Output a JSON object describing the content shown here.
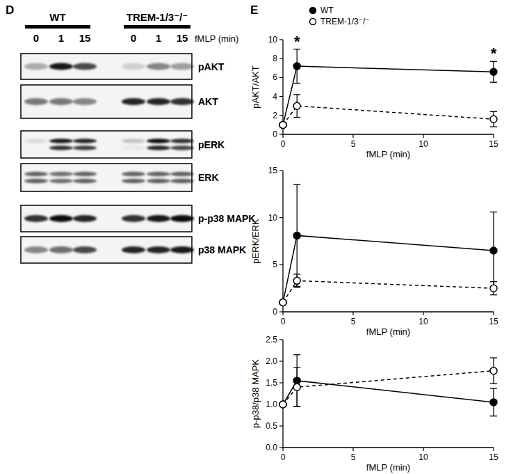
{
  "blot": {
    "panel_label": "D",
    "groups": [
      {
        "label": "WT",
        "lanes": [
          "0",
          "1",
          "15"
        ]
      },
      {
        "label": "TREM-1/3⁻/⁻",
        "lanes": [
          "0",
          "1",
          "15"
        ]
      }
    ],
    "lane_axis_label": "fMLP (min)",
    "rows": [
      {
        "label": "pAKT",
        "bands": [
          [
            0.3
          ],
          [
            0.9
          ],
          [
            0.7
          ],
          [
            0.15
          ],
          [
            0.45
          ],
          [
            0.35
          ]
        ]
      },
      {
        "label": "AKT",
        "bands": [
          [
            0.5
          ],
          [
            0.5
          ],
          [
            0.45
          ],
          [
            0.85
          ],
          [
            0.85
          ],
          [
            0.8
          ]
        ]
      },
      {
        "label": "pERK",
        "bands": [
          [
            0.1,
            0.0
          ],
          [
            0.9,
            0.8
          ],
          [
            0.85,
            0.75
          ],
          [
            0.2,
            0.05
          ],
          [
            0.95,
            0.85
          ],
          [
            0.8,
            0.7
          ]
        ]
      },
      {
        "label": "ERK",
        "bands": [
          [
            0.6,
            0.6
          ],
          [
            0.55,
            0.55
          ],
          [
            0.6,
            0.6
          ],
          [
            0.6,
            0.6
          ],
          [
            0.6,
            0.6
          ],
          [
            0.6,
            0.6
          ]
        ]
      },
      {
        "label": "p-p38 MAPK",
        "bands": [
          [
            0.8
          ],
          [
            0.95
          ],
          [
            0.85
          ],
          [
            0.8
          ],
          [
            0.9
          ],
          [
            0.95
          ]
        ]
      },
      {
        "label": "p38 MAPK",
        "bands": [
          [
            0.45
          ],
          [
            0.55
          ],
          [
            0.7
          ],
          [
            0.85
          ],
          [
            0.85
          ],
          [
            0.9
          ]
        ]
      }
    ]
  },
  "chart_panel_label": "E",
  "chart_data": [
    {
      "type": "line",
      "y_label": "pAKT/AKT",
      "x_label": "fMLP (min)",
      "legend": "top",
      "x": [
        0,
        1,
        15
      ],
      "xlim": [
        0,
        15
      ],
      "xticks": [
        0,
        5,
        10,
        15
      ],
      "ylim": [
        0,
        10
      ],
      "yticks": [
        0,
        2,
        4,
        6,
        8,
        10
      ],
      "series": [
        {
          "name": "WT",
          "color": "#000000",
          "marker": "filled-circle",
          "line_style": "solid",
          "values": [
            1,
            7.2,
            6.6
          ],
          "errors": [
            0,
            1.8,
            1.1
          ]
        },
        {
          "name": "TREM-1/3⁻/⁻",
          "color": "#000000",
          "marker": "open-circle",
          "line_style": "dashed",
          "values": [
            1,
            3.0,
            1.6
          ],
          "errors": [
            0,
            1.2,
            0.8
          ]
        }
      ],
      "annotations": [
        {
          "text": "*",
          "x": 1
        },
        {
          "text": "*",
          "x": 15
        }
      ]
    },
    {
      "type": "line",
      "y_label": "pERK/ERK",
      "x_label": "fMLP (min)",
      "x": [
        0,
        1,
        15
      ],
      "xlim": [
        0,
        15
      ],
      "xticks": [
        0,
        5,
        10,
        15
      ],
      "ylim": [
        0,
        15
      ],
      "yticks": [
        0,
        5,
        10,
        15
      ],
      "series": [
        {
          "color": "#000000",
          "marker": "filled-circle",
          "line_style": "solid",
          "values": [
            1,
            8.1,
            6.5
          ],
          "errors": [
            0,
            5.4,
            4.1
          ]
        },
        {
          "color": "#000000",
          "marker": "open-circle",
          "line_style": "dashed",
          "values": [
            1,
            3.3,
            2.5
          ],
          "errors": [
            0,
            0.7,
            0.7
          ]
        }
      ]
    },
    {
      "type": "line",
      "y_label": "p-p38/p38  MAPK",
      "x_label": "fMLP (min)",
      "x": [
        0,
        1,
        15
      ],
      "xlim": [
        0,
        15
      ],
      "xticks": [
        0,
        5,
        10,
        15
      ],
      "ylim": [
        0,
        2.5
      ],
      "yticks": [
        {
          "value": 0,
          "label": "0.0"
        },
        0.5,
        {
          "value": 1,
          "label": "1.0"
        },
        1.5,
        {
          "value": 2,
          "label": "2.0"
        },
        2.5
      ],
      "series": [
        {
          "color": "#000000",
          "marker": "filled-circle",
          "line_style": "solid",
          "values": [
            1,
            1.55,
            1.05
          ],
          "errors": [
            0,
            0.6,
            0.32
          ]
        },
        {
          "color": "#000000",
          "marker": "open-circle",
          "line_style": "dashed",
          "values": [
            1,
            1.4,
            1.78
          ],
          "errors": [
            0,
            0.45,
            0.3
          ]
        }
      ]
    }
  ]
}
